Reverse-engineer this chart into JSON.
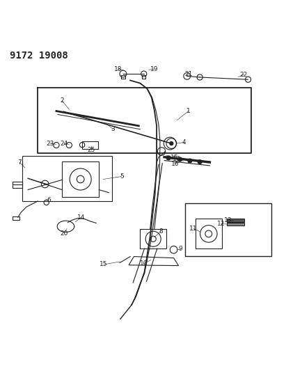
{
  "title": "9172 19008",
  "bg_color": "#ffffff",
  "title_fontsize": 10,
  "title_fontweight": "bold",
  "fig_width": 4.11,
  "fig_height": 5.33,
  "dpi": 100,
  "line_color": "#222222"
}
